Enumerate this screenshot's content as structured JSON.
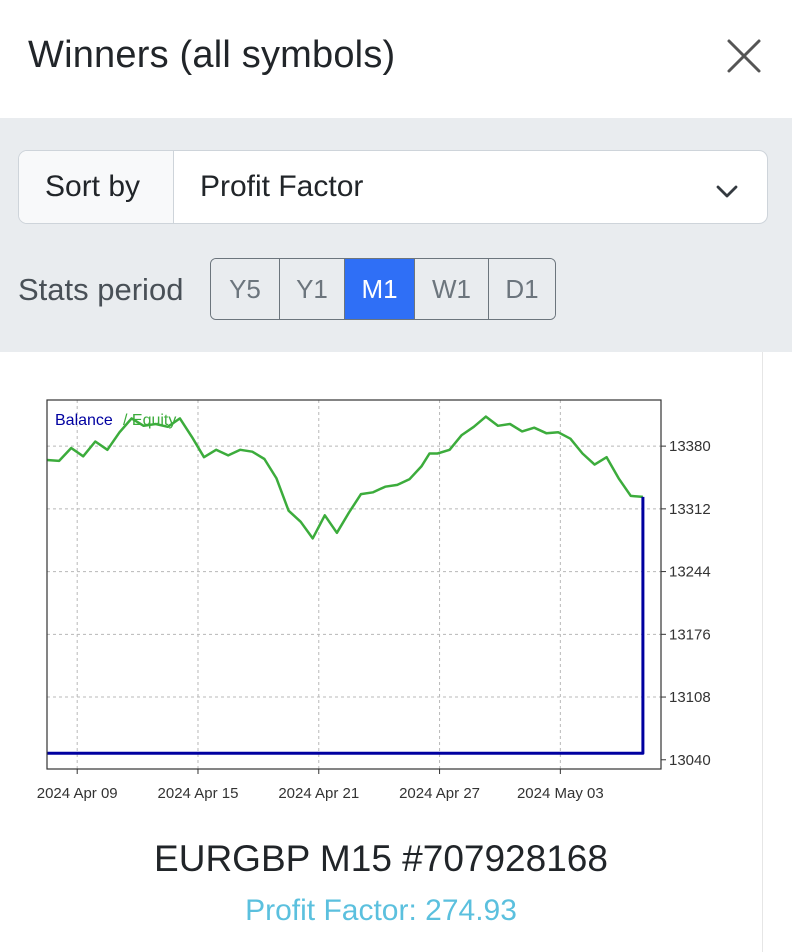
{
  "header": {
    "title": "Winners (all symbols)",
    "close_icon": "close-icon"
  },
  "sort": {
    "label": "Sort by",
    "selected": "Profit Factor",
    "chevron_icon": "chevron-down-icon"
  },
  "stats": {
    "label": "Stats period",
    "options": [
      "Y5",
      "Y1",
      "M1",
      "W1",
      "D1"
    ],
    "active": "M1"
  },
  "card": {
    "strategy": "EURGBP M15 #707928168",
    "metric": "Profit Factor: 274.93",
    "metric_color": "#5bc0de"
  },
  "chart_data": {
    "type": "line",
    "legend": [
      "Balance",
      "Equity"
    ],
    "legend_placement": "top-left",
    "series_colors": {
      "Balance": "#0000a0",
      "Equity": "#3cac3c"
    },
    "x_tick_labels": [
      "2024 Apr 09",
      "2024 Apr 15",
      "2024 Apr 21",
      "2024 Apr 27",
      "2024 May 03"
    ],
    "y_tick_labels": [
      "13380",
      "13312",
      "13244",
      "13176",
      "13108",
      "13040"
    ],
    "ylim": [
      13030,
      13430
    ],
    "grid": true,
    "series": [
      {
        "name": "Equity",
        "x_days": [
          0,
          0.6,
          1.2,
          1.8,
          2.4,
          3.0,
          3.6,
          4.2,
          4.8,
          5.4,
          6.0,
          6.6,
          7.2,
          7.8,
          8.4,
          9.0,
          9.6,
          10.2,
          10.8,
          11.4,
          12.0,
          12.6,
          13.2,
          13.8,
          14.4,
          15.0,
          15.6,
          16.2,
          16.8,
          17.4,
          18.0,
          18.6,
          19.0,
          19.4,
          20.0,
          20.6,
          21.2,
          21.8,
          22.4,
          23.0,
          23.6,
          24.2,
          24.8,
          25.4,
          26.0,
          26.6,
          27.2,
          27.8,
          28.4,
          29.0,
          29.6
        ],
        "y": [
          13365,
          13364,
          13378,
          13369,
          13385,
          13376,
          13395,
          13410,
          13402,
          13404,
          13401,
          13410,
          13390,
          13368,
          13376,
          13370,
          13376,
          13374,
          13366,
          13345,
          13310,
          13298,
          13280,
          13305,
          13286,
          13308,
          13328,
          13330,
          13336,
          13338,
          13344,
          13358,
          13372,
          13372,
          13376,
          13392,
          13401,
          13412,
          13402,
          13404,
          13396,
          13400,
          13394,
          13395,
          13388,
          13372,
          13360,
          13368,
          13345,
          13326,
          13325
        ]
      },
      {
        "name": "Balance",
        "x_days": [
          0,
          29.6,
          29.6
        ],
        "y": [
          13047,
          13047,
          13325
        ]
      }
    ]
  }
}
